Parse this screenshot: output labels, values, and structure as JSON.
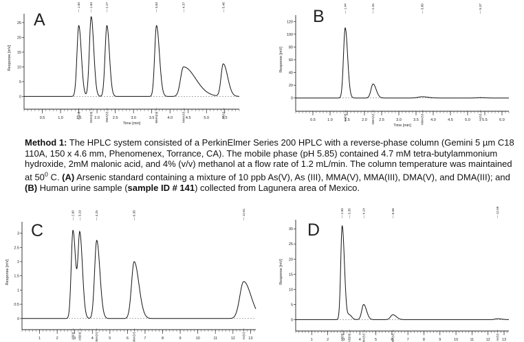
{
  "caption": {
    "method_label": "Method 1:",
    "text_1": " The HPLC system consisted of a PerkinElmer Series 200 HPLC with a reverse-phase column (Gemini 5 µm C18 110A, 150 x 4.6 mm, Phenomenex, Torrance, CA). The mobile phase (pH 5.85) contained 4.7 mM tetra-butylammonium hydroxide, 2mM malonic acid, and 4% (v/v) methanol at a flow rate of 1.2 mL/min. The column temperature was maintained at 50",
    "superscript": "0",
    "text_2": " C. ",
    "bold_a": "(A)",
    "text_3": " Arsenic standard containing a mixture of 10 ppb As(V), As (III), MMA(V), MMA(III), DMA(V), and DMA(III); and ",
    "bold_b": "(B)",
    "text_4": " Human urine sample (",
    "bold_sample": "sample ID # 141",
    "text_5": ") collected from Lagunera area of Mexico."
  },
  "chart_data": [
    {
      "panel": "A",
      "type": "line",
      "xlabel": "Time [min]",
      "ylabel": "Response [mV]",
      "xlim": [
        0,
        5.9
      ],
      "ylim": [
        -2,
        28
      ],
      "xticks": [
        0.5,
        1.0,
        1.5,
        2.0,
        2.5,
        3.0,
        3.5,
        4.0,
        4.5,
        5.0,
        5.5
      ],
      "yticks": [
        0,
        5,
        10,
        15,
        20,
        25
      ],
      "peaks": [
        {
          "rt": 1.5,
          "top_label": "— 1.50",
          "height": 24,
          "width": 0.05,
          "tail": 0.02,
          "bottom_label": "As(III)"
        },
        {
          "rt": 1.84,
          "top_label": "— 1.84",
          "height": 27,
          "width": 0.05,
          "tail": 0.02,
          "bottom_label": "DMA(III)"
        },
        {
          "rt": 2.27,
          "top_label": "— 2.27",
          "height": 24,
          "width": 0.05,
          "tail": 0.02,
          "bottom_label": "DMA(V)"
        },
        {
          "rt": 3.63,
          "top_label": "— 3.63",
          "height": 24,
          "width": 0.05,
          "tail": 0.03,
          "bottom_label": "MMA(III)"
        },
        {
          "rt": 4.37,
          "top_label": "— 4.37",
          "height": 10,
          "width": 0.08,
          "tail": 0.25,
          "bottom_label": "MMA(V)"
        },
        {
          "rt": 5.46,
          "top_label": "— 5.46",
          "height": 11,
          "width": 0.06,
          "tail": 0.06,
          "bottom_label": "As(V)"
        }
      ]
    },
    {
      "panel": "B",
      "type": "line",
      "xlabel": "Time [min]",
      "ylabel": "Response [mV]",
      "xlim": [
        0,
        6.2
      ],
      "ylim": [
        -10,
        130
      ],
      "xticks": [
        0.5,
        1.0,
        1.5,
        2.0,
        2.5,
        3.0,
        3.5,
        4.0,
        4.5,
        5.0,
        5.5,
        6.0
      ],
      "yticks": [
        0,
        20,
        40,
        60,
        80,
        100,
        120
      ],
      "peaks": [
        {
          "rt": 1.44,
          "top_label": "— 1.44",
          "height": 110,
          "width": 0.05,
          "tail": 0.02,
          "bottom_label": "As(III)"
        },
        {
          "rt": 2.25,
          "top_label": "— 2.25",
          "height": 22,
          "width": 0.06,
          "tail": 0.03,
          "bottom_label": "DMA(V)"
        },
        {
          "rt": 3.68,
          "top_label": "— 3.68",
          "height": 2,
          "width": 0.12,
          "tail": 0.05,
          "bottom_label": "MMA(V)"
        },
        {
          "rt": 5.37,
          "top_label": "— 5.37",
          "height": 0.6,
          "width": 0.1,
          "tail": 0.03,
          "bottom_label": "As(V)"
        }
      ]
    },
    {
      "panel": "C",
      "type": "line",
      "xlabel": "Time [min]",
      "ylabel": "Response [mV]",
      "xlim": [
        0,
        13.3
      ],
      "ylim": [
        -0.15,
        3.4
      ],
      "xticks": [
        1,
        2,
        3,
        4,
        5,
        6,
        7,
        8,
        9,
        10,
        11,
        12,
        13
      ],
      "yticks": [
        0.0,
        0.5,
        1.0,
        1.5,
        2.0,
        2.5,
        3.0
      ],
      "peaks": [
        {
          "rt": 2.9,
          "top_label": "— 2.90",
          "height": 3.1,
          "width": 0.1,
          "tail": 0.05,
          "bottom_label": "AB(II)"
        },
        {
          "rt": 3.29,
          "top_label": "— 3.29",
          "height": 2.95,
          "width": 0.1,
          "tail": 0.05,
          "bottom_label": "AB(III)"
        },
        {
          "rt": 4.25,
          "top_label": "— 4.25",
          "height": 2.75,
          "width": 0.12,
          "tail": 0.06,
          "bottom_label": "DMA(V)"
        },
        {
          "rt": 6.38,
          "top_label": "— 6.38",
          "height": 2.0,
          "width": 0.15,
          "tail": 0.12,
          "bottom_label": "MMA(V)"
        },
        {
          "rt": 12.61,
          "top_label": "— 12.61",
          "height": 1.3,
          "width": 0.22,
          "tail": 0.2,
          "bottom_label": "As(V)"
        }
      ]
    },
    {
      "panel": "D",
      "type": "line",
      "xlabel": "Time [min]",
      "ylabel": "Response [mV]",
      "xlim": [
        0,
        13.3
      ],
      "ylim": [
        -1.5,
        33
      ],
      "xticks": [
        1,
        2,
        3,
        4,
        5,
        6,
        7,
        8,
        9,
        10,
        11,
        12,
        13
      ],
      "yticks": [
        0,
        5,
        10,
        15,
        20,
        25,
        30
      ],
      "peaks": [
        {
          "rt": 2.9,
          "top_label": "— 2.90",
          "height": 31,
          "width": 0.09,
          "tail": 0.05,
          "bottom_label": "AB(II)"
        },
        {
          "rt": 3.35,
          "top_label": "— 3.35",
          "height": 1.5,
          "width": 0.1,
          "tail": 0.05,
          "bottom_label": "AB(III)"
        },
        {
          "rt": 4.24,
          "top_label": "— 4.24",
          "height": 5,
          "width": 0.12,
          "tail": 0.06,
          "bottom_label": "DMA(V)"
        },
        {
          "rt": 6.06,
          "top_label": "— 6.06",
          "height": 1.6,
          "width": 0.14,
          "tail": 0.08,
          "bottom_label": "MMA(V)"
        },
        {
          "rt": 12.59,
          "top_label": "— 12.59",
          "height": 0.3,
          "width": 0.15,
          "tail": 0.1,
          "bottom_label": "As(V)"
        }
      ]
    }
  ]
}
